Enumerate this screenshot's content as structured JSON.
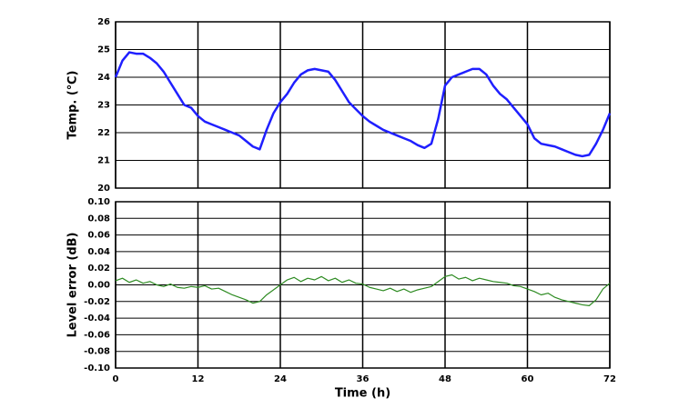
{
  "chart_data": [
    {
      "type": "line",
      "ylabel": "Temp. (℃)",
      "x": [
        0,
        1,
        2,
        3,
        4,
        5,
        6,
        7,
        8,
        9,
        10,
        11,
        12,
        13,
        14,
        15,
        16,
        17,
        18,
        19,
        20,
        21,
        22,
        23,
        24,
        25,
        26,
        27,
        28,
        29,
        30,
        31,
        32,
        33,
        34,
        35,
        36,
        37,
        38,
        39,
        40,
        41,
        42,
        43,
        44,
        45,
        46,
        47,
        48,
        49,
        50,
        51,
        52,
        53,
        54,
        55,
        56,
        57,
        58,
        59,
        60,
        61,
        62,
        63,
        64,
        65,
        66,
        67,
        68,
        69,
        70,
        71,
        72
      ],
      "series": [
        {
          "color": "#1f1fff",
          "values": [
            24.0,
            24.6,
            24.9,
            24.85,
            24.85,
            24.7,
            24.5,
            24.2,
            23.8,
            23.4,
            23.0,
            22.9,
            22.6,
            22.4,
            22.3,
            22.2,
            22.1,
            22.0,
            21.9,
            21.7,
            21.5,
            21.4,
            22.1,
            22.7,
            23.1,
            23.4,
            23.8,
            24.1,
            24.25,
            24.3,
            24.25,
            24.2,
            23.9,
            23.5,
            23.1,
            22.85,
            22.6,
            22.4,
            22.25,
            22.1,
            22.0,
            21.9,
            21.8,
            21.7,
            21.55,
            21.45,
            21.6,
            22.5,
            23.7,
            24.0,
            24.1,
            24.2,
            24.3,
            24.3,
            24.1,
            23.7,
            23.4,
            23.2,
            22.9,
            22.6,
            22.3,
            21.8,
            21.6,
            21.55,
            21.5,
            21.4,
            21.3,
            21.2,
            21.15,
            21.2,
            21.6,
            22.1,
            22.7
          ]
        }
      ],
      "xlim": [
        0,
        72
      ],
      "xticks": [
        0,
        12,
        24,
        36,
        48,
        60,
        72
      ],
      "ylim": [
        20,
        26
      ],
      "yticks": [
        20,
        21,
        22,
        23,
        24,
        25,
        26
      ],
      "grid": true
    },
    {
      "type": "line",
      "ylabel": "Level error (dB)",
      "xlabel": "Time (h)",
      "x": [
        0,
        1,
        2,
        3,
        4,
        5,
        6,
        7,
        8,
        9,
        10,
        11,
        12,
        13,
        14,
        15,
        16,
        17,
        18,
        19,
        20,
        21,
        22,
        23,
        24,
        25,
        26,
        27,
        28,
        29,
        30,
        31,
        32,
        33,
        34,
        35,
        36,
        37,
        38,
        39,
        40,
        41,
        42,
        43,
        44,
        45,
        46,
        47,
        48,
        49,
        50,
        51,
        52,
        53,
        54,
        55,
        56,
        57,
        58,
        59,
        60,
        61,
        62,
        63,
        64,
        65,
        66,
        67,
        68,
        69,
        70,
        71,
        72
      ],
      "series": [
        {
          "color": "#2e8b22",
          "values": [
            0.005,
            0.008,
            0.003,
            0.006,
            0.002,
            0.004,
            0.0,
            -0.002,
            0.001,
            -0.003,
            -0.004,
            -0.002,
            -0.003,
            -0.001,
            -0.005,
            -0.004,
            -0.008,
            -0.012,
            -0.015,
            -0.018,
            -0.022,
            -0.02,
            -0.012,
            -0.006,
            0.0,
            0.006,
            0.009,
            0.004,
            0.008,
            0.006,
            0.01,
            0.005,
            0.008,
            0.003,
            0.006,
            0.002,
            0.001,
            -0.003,
            -0.005,
            -0.007,
            -0.004,
            -0.008,
            -0.005,
            -0.009,
            -0.006,
            -0.004,
            -0.002,
            0.004,
            0.01,
            0.012,
            0.007,
            0.009,
            0.005,
            0.008,
            0.006,
            0.004,
            0.003,
            0.002,
            -0.001,
            -0.002,
            -0.005,
            -0.008,
            -0.012,
            -0.01,
            -0.015,
            -0.018,
            -0.02,
            -0.022,
            -0.024,
            -0.025,
            -0.018,
            -0.005,
            0.002
          ]
        }
      ],
      "xlim": [
        0,
        72
      ],
      "xticks": [
        0,
        12,
        24,
        36,
        48,
        60,
        72
      ],
      "ylim": [
        -0.1,
        0.1
      ],
      "yticks": [
        {
          "value": -0.1,
          "label": "-0.10"
        },
        {
          "value": -0.08,
          "label": "-0.08"
        },
        {
          "value": -0.06,
          "label": "-0.06"
        },
        {
          "value": -0.04,
          "label": "-0.04"
        },
        {
          "value": -0.02,
          "label": "-0.02"
        },
        {
          "value": 0,
          "label": "0.00"
        },
        {
          "value": 0.02,
          "label": "0.02"
        },
        {
          "value": 0.04,
          "label": "0.04"
        },
        {
          "value": 0.06,
          "label": "0.06"
        },
        {
          "value": 0.08,
          "label": "0.08"
        },
        {
          "value": 0.1,
          "label": "0.10"
        }
      ],
      "grid": true
    }
  ]
}
